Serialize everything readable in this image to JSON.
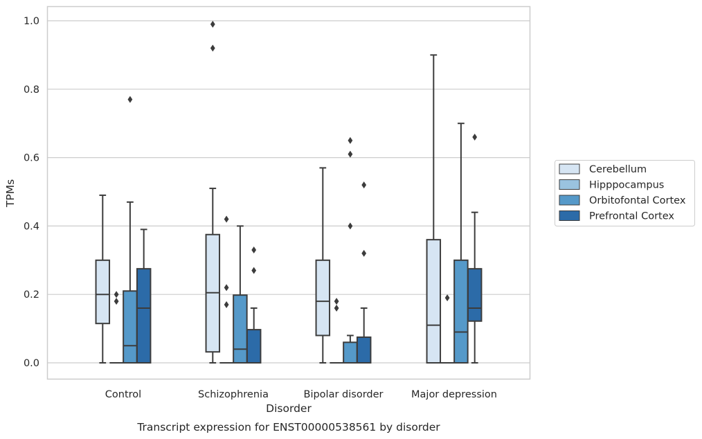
{
  "chart_data": {
    "type": "box",
    "title": "Transcript expression for ENST00000538561 by disorder",
    "xlabel": "Disorder",
    "ylabel": "TPMs",
    "ylim": [
      -0.05,
      1.04
    ],
    "yticks": [
      "0.0",
      "0.2",
      "0.4",
      "0.6",
      "0.8",
      "1.0"
    ],
    "grid": "horizontal",
    "legend_position": "right",
    "categories": [
      "Control",
      "Schizophrenia",
      "Bipolar disorder",
      "Major depression"
    ],
    "series": [
      {
        "name": "Cerebellum",
        "color": "#d6e5f3",
        "boxes": [
          {
            "whislo": 0.0,
            "q1": 0.115,
            "med": 0.2,
            "q3": 0.3,
            "whishi": 0.49,
            "fliers": []
          },
          {
            "whislo": 0.0,
            "q1": 0.032,
            "med": 0.205,
            "q3": 0.375,
            "whishi": 0.51,
            "fliers": [
              0.92,
              0.99
            ]
          },
          {
            "whislo": 0.0,
            "q1": 0.08,
            "med": 0.18,
            "q3": 0.3,
            "whishi": 0.57,
            "fliers": []
          },
          {
            "whislo": 0.0,
            "q1": 0.0,
            "med": 0.11,
            "q3": 0.36,
            "whishi": 0.9,
            "fliers": []
          }
        ]
      },
      {
        "name": "Hipppocampus",
        "color": "#9ac3df",
        "boxes": [
          {
            "whislo": 0.0,
            "q1": 0.0,
            "med": 0.0,
            "q3": 0.0,
            "whishi": 0.0,
            "fliers": [
              0.18,
              0.2
            ]
          },
          {
            "whislo": 0.0,
            "q1": 0.0,
            "med": 0.0,
            "q3": 0.0,
            "whishi": 0.0,
            "fliers": [
              0.17,
              0.22,
              0.42
            ]
          },
          {
            "whislo": 0.0,
            "q1": 0.0,
            "med": 0.0,
            "q3": 0.0,
            "whishi": 0.0,
            "fliers": [
              0.16,
              0.18
            ]
          },
          {
            "whislo": 0.0,
            "q1": 0.0,
            "med": 0.0,
            "q3": 0.0,
            "whishi": 0.0,
            "fliers": [
              0.19
            ]
          }
        ]
      },
      {
        "name": "Orbitofontal Cortex",
        "color": "#5599c9",
        "boxes": [
          {
            "whislo": 0.0,
            "q1": 0.0,
            "med": 0.05,
            "q3": 0.21,
            "whishi": 0.47,
            "fliers": [
              0.77
            ]
          },
          {
            "whislo": 0.0,
            "q1": 0.0,
            "med": 0.04,
            "q3": 0.198,
            "whishi": 0.4,
            "fliers": []
          },
          {
            "whislo": 0.0,
            "q1": 0.0,
            "med": 0.0,
            "q3": 0.06,
            "whishi": 0.08,
            "fliers": [
              0.4,
              0.61,
              0.65
            ]
          },
          {
            "whislo": 0.0,
            "q1": 0.0,
            "med": 0.09,
            "q3": 0.3,
            "whishi": 0.7,
            "fliers": []
          }
        ]
      },
      {
        "name": "Prefrontal Cortex",
        "color": "#2c6ba8",
        "boxes": [
          {
            "whislo": 0.0,
            "q1": 0.0,
            "med": 0.16,
            "q3": 0.275,
            "whishi": 0.39,
            "fliers": []
          },
          {
            "whislo": 0.0,
            "q1": 0.0,
            "med": 0.0,
            "q3": 0.097,
            "whishi": 0.16,
            "fliers": [
              0.27,
              0.33
            ]
          },
          {
            "whislo": 0.0,
            "q1": 0.0,
            "med": 0.0,
            "q3": 0.075,
            "whishi": 0.16,
            "fliers": [
              0.32,
              0.52
            ]
          },
          {
            "whislo": 0.0,
            "q1": 0.122,
            "med": 0.16,
            "q3": 0.275,
            "whishi": 0.44,
            "fliers": [
              0.66
            ]
          }
        ]
      }
    ]
  }
}
